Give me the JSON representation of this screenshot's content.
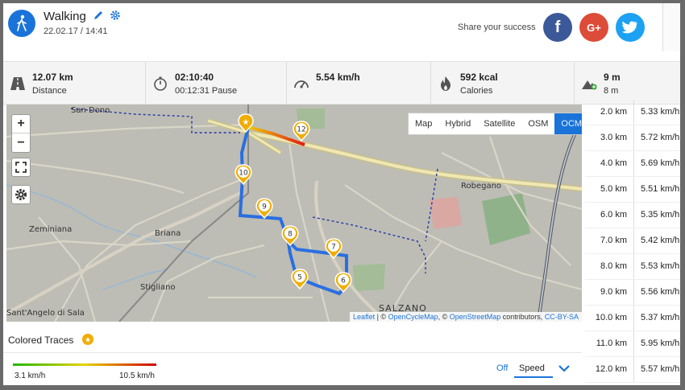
{
  "header": {
    "title": "Walking",
    "date": "22.02.17 / 14:41",
    "share_label": "Share your success",
    "social": {
      "facebook": "f",
      "google": "G+"
    }
  },
  "stats": [
    {
      "value": "12.07 km",
      "label": "Distance",
      "icon": "road-icon"
    },
    {
      "value": "02:10:40",
      "label": "00:12:31 Pause",
      "icon": "stopwatch-icon"
    },
    {
      "value": "5.54 km/h",
      "label": "",
      "icon": "speedometer-icon"
    },
    {
      "value": "592 kcal",
      "label": "Calories",
      "icon": "flame-icon"
    },
    {
      "value": "9 m",
      "label": "8 m",
      "icon": "elevation-icon"
    }
  ],
  "map": {
    "zoom_in": "+",
    "zoom_out": "−",
    "layers": [
      "Map",
      "Hybrid",
      "Satellite",
      "OSM",
      "OCM"
    ],
    "active_layer": "OCM",
    "places": [
      "San Dono",
      "Robegano",
      "Zeminiana",
      "Briana",
      "Stigliano",
      "Sant'Angelo di Sala",
      "SALZANO"
    ],
    "markers": [
      "12",
      "10",
      "9",
      "8",
      "7",
      "5",
      "6"
    ],
    "attribution": {
      "leaflet": "Leaflet",
      "sep1": " | © ",
      "ocm": "OpenCycleMap",
      "sep2": ", © ",
      "osm": "OpenStreetMap",
      "contrib": " contributors, ",
      "license": "CC-BY-SA"
    }
  },
  "pace_table": [
    {
      "km": "2.0 km",
      "speed": "5.33 km/h"
    },
    {
      "km": "3.0 km",
      "speed": "5.72 km/h"
    },
    {
      "km": "4.0 km",
      "speed": "5.69 km/h"
    },
    {
      "km": "5.0 km",
      "speed": "5.51 km/h"
    },
    {
      "km": "6.0 km",
      "speed": "5.35 km/h"
    },
    {
      "km": "7.0 km",
      "speed": "5.42 km/h"
    },
    {
      "km": "8.0 km",
      "speed": "5.53 km/h"
    },
    {
      "km": "9.0 km",
      "speed": "5.56 km/h"
    },
    {
      "km": "10.0 km",
      "speed": "5.37 km/h"
    },
    {
      "km": "11.0 km",
      "speed": "5.95 km/h"
    },
    {
      "km": "12.0 km",
      "speed": "5.57 km/h"
    }
  ],
  "traces": {
    "label": "Colored Traces",
    "min": "3.1 km/h",
    "max": "10.5 km/h",
    "options": [
      "Off",
      "Speed"
    ],
    "selected": "Speed",
    "colors": {
      "low": "#1eb800",
      "mid": "#e7d200",
      "high": "#d10000"
    }
  },
  "accent": "#1a73d9"
}
